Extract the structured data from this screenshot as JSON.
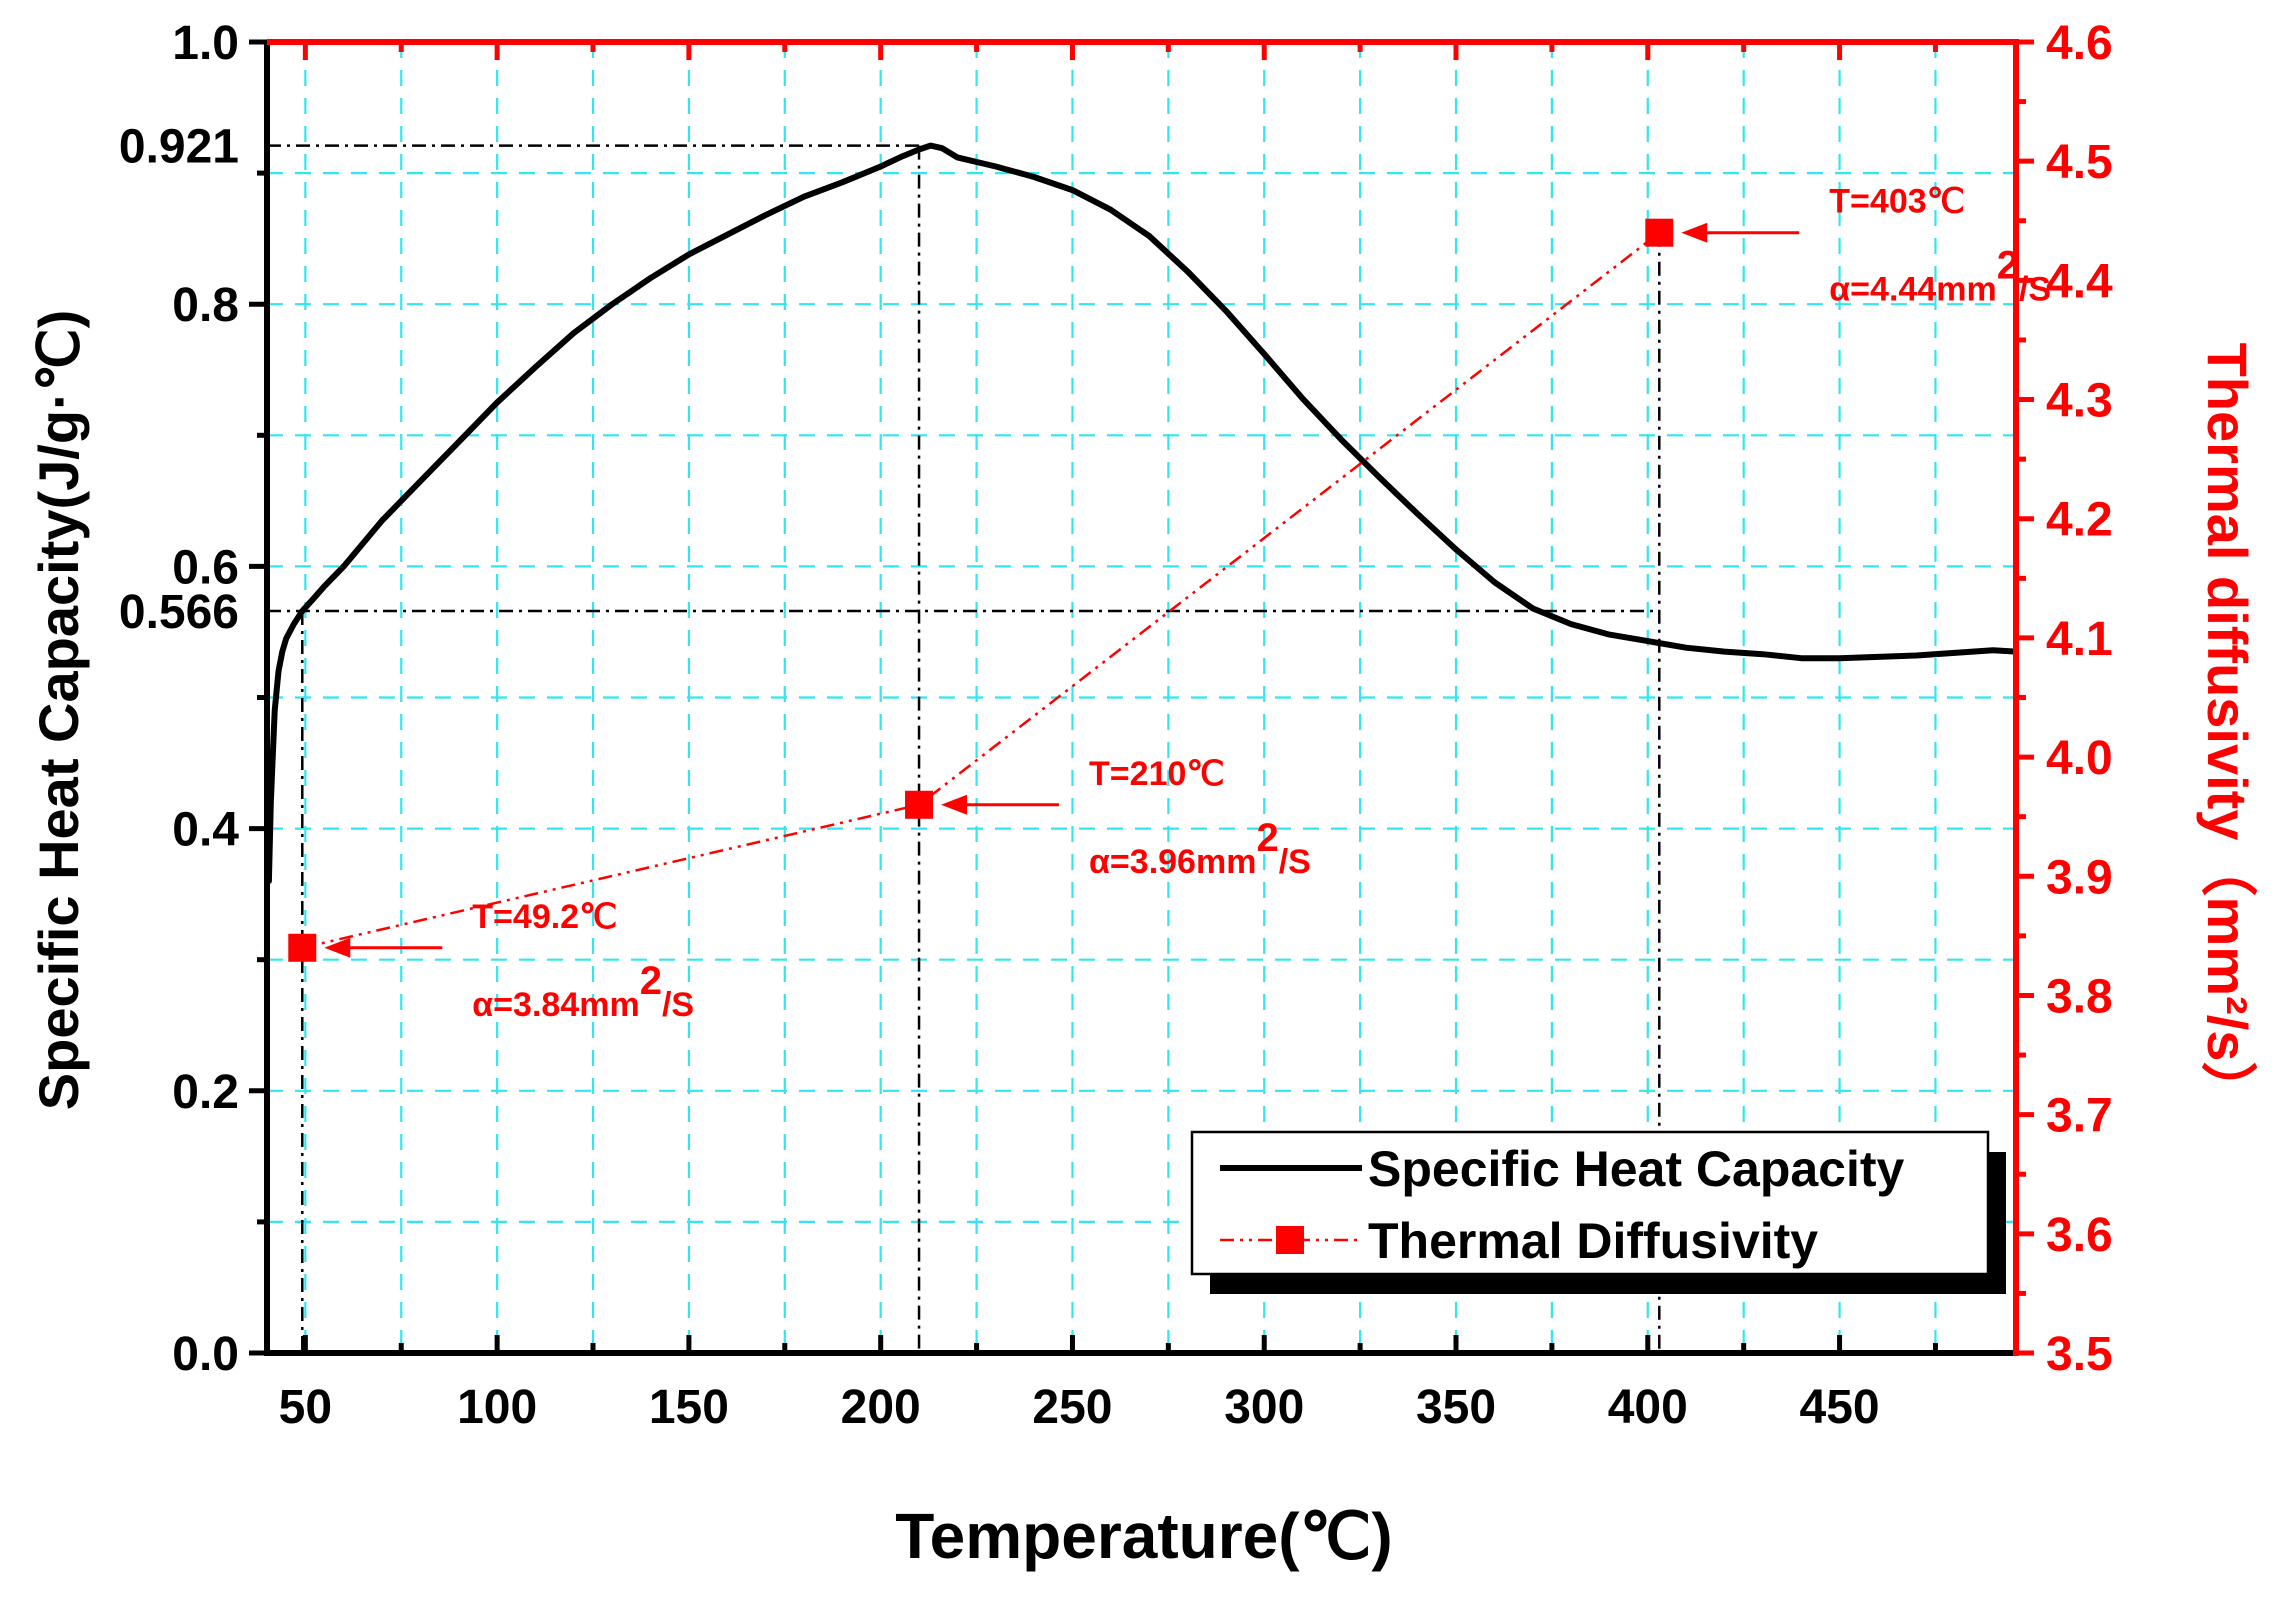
{
  "chart_data": {
    "type": "line",
    "title": "",
    "xlabel": "Temperature(℃)",
    "ylabel_left": "Specific Heat Capacity(J/g·℃)",
    "ylabel_right": "Thermal diffusivity（mm²/s）",
    "xlim": [
      40,
      496
    ],
    "ylim_left": [
      0.0,
      1.0
    ],
    "ylim_right": [
      3.5,
      4.6
    ],
    "grid": true,
    "x_ticks": [
      50,
      100,
      150,
      200,
      250,
      300,
      350,
      400,
      450
    ],
    "x_tick_labels": [
      "50",
      "100",
      "150",
      "200",
      "250",
      "300",
      "350",
      "400",
      "450"
    ],
    "y_left_ticks": [
      0.0,
      0.2,
      0.4,
      0.6,
      0.8,
      1.0
    ],
    "y_left_tick_labels": [
      "0.0",
      "0.2",
      "0.4",
      "0.6",
      "0.8",
      "1.0"
    ],
    "y_left_extra_ticks": [
      0.566,
      0.921
    ],
    "y_left_extra_labels": [
      "0.566",
      "0.921"
    ],
    "y_right_ticks": [
      3.5,
      3.6,
      3.7,
      3.8,
      3.9,
      4.0,
      4.1,
      4.2,
      4.3,
      4.4,
      4.5,
      4.6
    ],
    "y_right_tick_labels": [
      "3.5",
      "3.6",
      "3.7",
      "3.8",
      "3.9",
      "4.0",
      "4.1",
      "4.2",
      "4.3",
      "4.4",
      "4.5",
      "4.6"
    ],
    "series": [
      {
        "name": "Specific Heat Capacity",
        "axis": "left",
        "color": "#000000",
        "style": "solid",
        "x": [
          40.5,
          41,
          42,
          43,
          44,
          45,
          47,
          49.2,
          52,
          55,
          60,
          70,
          80,
          90,
          100,
          110,
          120,
          130,
          140,
          150,
          160,
          170,
          180,
          190,
          200,
          205,
          210,
          213,
          216,
          220,
          230,
          240,
          250,
          260,
          270,
          280,
          290,
          300,
          310,
          320,
          330,
          340,
          350,
          360,
          370,
          380,
          390,
          400,
          410,
          420,
          430,
          440,
          450,
          460,
          470,
          480,
          490,
          496
        ],
        "y": [
          0.36,
          0.42,
          0.49,
          0.52,
          0.535,
          0.545,
          0.556,
          0.566,
          0.575,
          0.585,
          0.6,
          0.635,
          0.665,
          0.695,
          0.725,
          0.752,
          0.778,
          0.8,
          0.82,
          0.838,
          0.853,
          0.868,
          0.882,
          0.893,
          0.905,
          0.912,
          0.918,
          0.921,
          0.919,
          0.912,
          0.905,
          0.897,
          0.887,
          0.872,
          0.852,
          0.825,
          0.795,
          0.762,
          0.728,
          0.697,
          0.668,
          0.64,
          0.613,
          0.588,
          0.568,
          0.556,
          0.548,
          0.543,
          0.538,
          0.535,
          0.533,
          0.53,
          0.53,
          0.531,
          0.532,
          0.534,
          0.536,
          0.535
        ]
      },
      {
        "name": "Thermal Diffusivity",
        "axis": "right",
        "color": "#ff0000",
        "style": "dash-dot",
        "marker": "square",
        "x": [
          49.2,
          210,
          403
        ],
        "y": [
          3.84,
          3.96,
          4.44
        ]
      }
    ],
    "reference_lines": [
      {
        "y_left": 0.921,
        "x_to": 210
      },
      {
        "y_left": 0.566,
        "x_to": 403
      },
      {
        "x": 49.2,
        "y_left_from": 0.566
      },
      {
        "x": 210,
        "y_left_from": 0.921
      },
      {
        "x": 403,
        "y_right_from": 4.44
      }
    ],
    "annotations": [
      {
        "target_x": 49.2,
        "target_y_right": 3.84,
        "line1": "T=49.2℃",
        "line2_prefix": "α=3.84mm",
        "sup": "2",
        "line2_suffix": "/S"
      },
      {
        "target_x": 210,
        "target_y_right": 3.96,
        "line1": "T=210℃",
        "line2_prefix": "α=3.96mm",
        "sup": "2",
        "line2_suffix": "/S"
      },
      {
        "target_x": 403,
        "target_y_right": 4.44,
        "line1": "T=403℃",
        "line2_prefix": "α=4.44mm",
        "sup": "2",
        "line2_suffix": "/S"
      }
    ],
    "legend": {
      "position": "bottom-right",
      "entries": [
        "Specific Heat Capacity",
        "Thermal Diffusivity"
      ]
    },
    "colors": {
      "left_axis": "#000000",
      "right_axis": "#ff0000",
      "grid": "#33e5f0"
    }
  }
}
